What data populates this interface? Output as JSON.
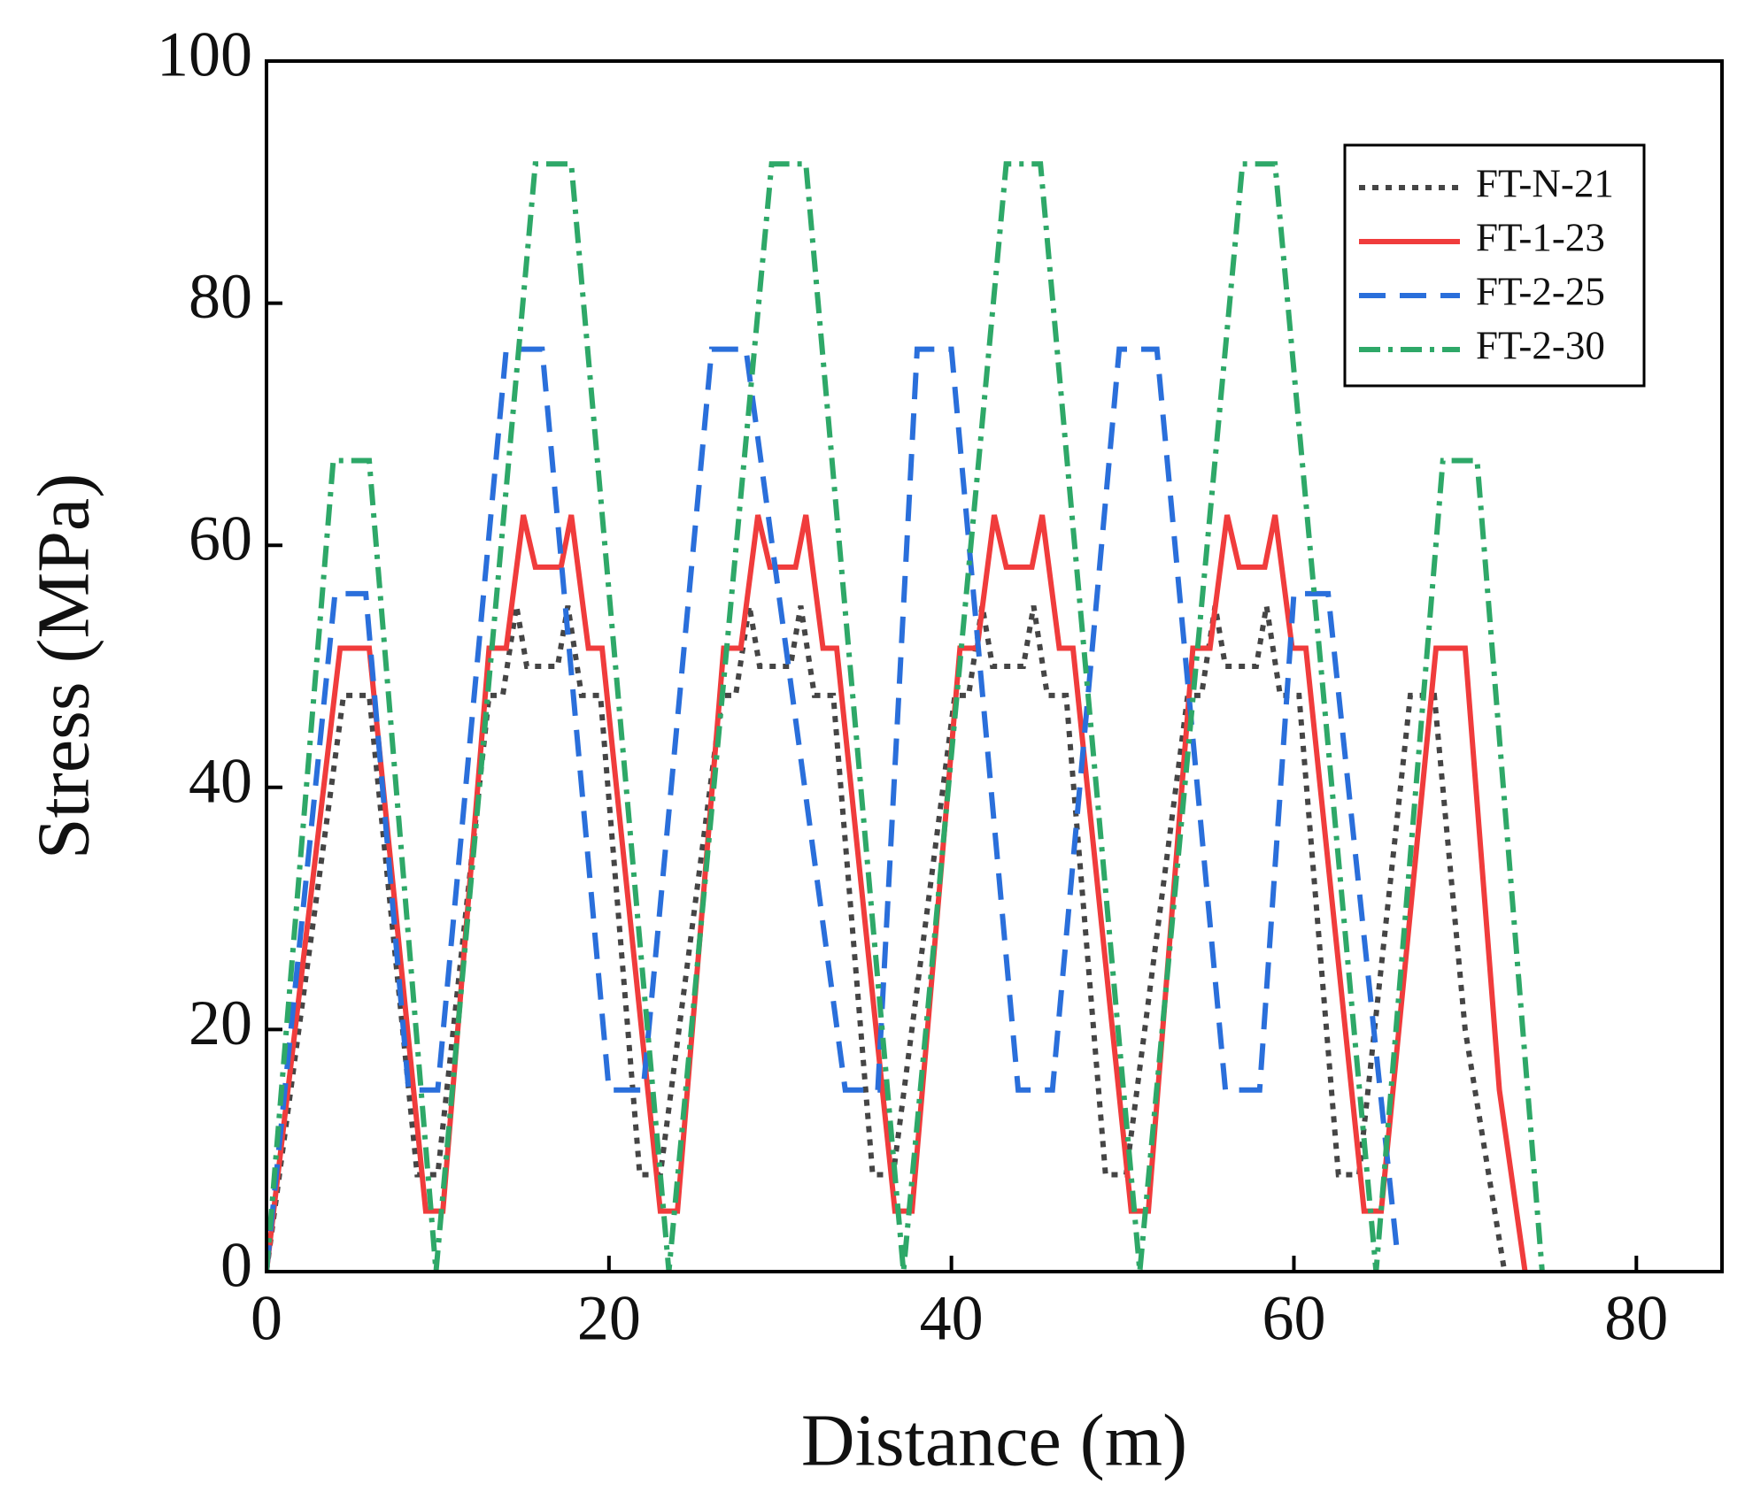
{
  "chart_data": {
    "type": "line",
    "xlabel": "Distance (m)",
    "ylabel": "Stress (MPa)",
    "xlim": [
      0,
      85
    ],
    "xticks": [
      0,
      20,
      40,
      60,
      80
    ],
    "ylim": [
      0,
      100
    ],
    "yticks": [
      0,
      20,
      40,
      60,
      80,
      100
    ],
    "legend": "upper right",
    "series": [
      {
        "name": "FT-N-21",
        "color": "#454545",
        "dash": "dotted",
        "x": [
          0,
          4.5,
          6,
          8.8,
          10,
          13,
          13.8,
          14.6,
          15.2,
          17,
          17.6,
          18.4,
          19.5,
          21.8,
          23,
          26.6,
          27.4,
          28.2,
          28.8,
          30.6,
          31.2,
          32,
          33.1,
          35.4,
          36.6,
          40.2,
          41,
          41.8,
          42.4,
          44.2,
          44.8,
          45.6,
          46.7,
          49,
          50.2,
          53.8,
          54.6,
          55.4,
          56,
          57.8,
          58.4,
          59.2,
          60.3,
          62.6,
          63.8,
          66.8,
          68.2,
          70,
          72.3
        ],
        "values": [
          0,
          47.6,
          47.6,
          8,
          8,
          47.6,
          47.6,
          55,
          50,
          50,
          55,
          47.6,
          47.6,
          8,
          8,
          47.6,
          47.6,
          55,
          50,
          50,
          55,
          47.6,
          47.6,
          8,
          8,
          47.6,
          47.6,
          55,
          50,
          50,
          55,
          47.6,
          47.6,
          8,
          8,
          47.6,
          47.6,
          55,
          50,
          50,
          55,
          47.6,
          47.6,
          8,
          8,
          47.6,
          47.6,
          20,
          0
        ]
      },
      {
        "name": "FT-1-23",
        "color": "#f03c3c",
        "dash": "solid",
        "x": [
          0,
          4.3,
          6,
          9.3,
          10.3,
          13,
          14,
          15,
          15.7,
          17.2,
          17.8,
          18.8,
          19.6,
          23,
          24,
          26.7,
          27.7,
          28.7,
          29.4,
          30.9,
          31.5,
          32.5,
          33.3,
          36.7,
          37.7,
          40.5,
          41.5,
          42.5,
          43.2,
          44.7,
          45.3,
          46.3,
          47.1,
          50.5,
          51.5,
          54.1,
          55.1,
          56.1,
          56.8,
          58.3,
          58.9,
          59.9,
          60.7,
          64.1,
          65.1,
          68.3,
          70,
          72,
          73.5
        ],
        "values": [
          0,
          51.5,
          51.5,
          5,
          5,
          51.5,
          51.5,
          62.5,
          58.2,
          58.2,
          62.5,
          51.5,
          51.5,
          5,
          5,
          51.5,
          51.5,
          62.5,
          58.2,
          58.2,
          62.5,
          51.5,
          51.5,
          5,
          5,
          51.5,
          51.5,
          62.5,
          58.2,
          58.2,
          62.5,
          51.5,
          51.5,
          5,
          5,
          51.5,
          51.5,
          62.5,
          58.2,
          58.2,
          62.5,
          51.5,
          51.5,
          5,
          5,
          51.5,
          51.5,
          15,
          0
        ]
      },
      {
        "name": "FT-2-25",
        "color": "#2a6fdb",
        "dash": "dashed",
        "x": [
          0,
          4,
          5.8,
          8.3,
          10,
          14,
          16.1,
          20,
          22,
          26,
          28,
          33.8,
          35.7,
          38,
          40,
          43.9,
          45.9,
          49.8,
          52,
          56,
          58,
          60,
          62,
          66
        ],
        "values": [
          0,
          56,
          56,
          15,
          15,
          76.2,
          76.2,
          15,
          15,
          76.2,
          76.2,
          15,
          15,
          76.2,
          76.2,
          15,
          15,
          76.2,
          76.2,
          15,
          15,
          56,
          56,
          2
        ]
      },
      {
        "name": "FT-2-30",
        "color": "#2ea868",
        "dash": "dashdot",
        "x": [
          0,
          3.9,
          6,
          9.9,
          15.7,
          17.8,
          23.5,
          29.5,
          31.5,
          37.2,
          43.2,
          45.2,
          51,
          57,
          58.9,
          64.8,
          68.7,
          70.7,
          74.5
        ],
        "values": [
          0,
          67,
          67,
          0,
          91.5,
          91.5,
          0,
          91.5,
          91.5,
          0,
          91.5,
          91.5,
          0,
          91.5,
          91.5,
          0,
          67,
          67,
          0
        ]
      }
    ]
  }
}
